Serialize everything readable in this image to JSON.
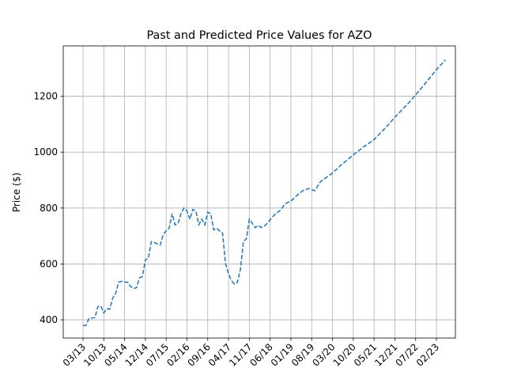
{
  "chart_data": {
    "type": "line",
    "title": "Past and Predicted Price Values for AZO",
    "xlabel": "",
    "ylabel": "Price ($)",
    "x_tick_labels": [
      "03/13",
      "10/13",
      "05/14",
      "12/14",
      "07/15",
      "02/16",
      "09/16",
      "04/17",
      "11/17",
      "06/18",
      "01/19",
      "08/19",
      "03/20",
      "10/20",
      "05/21",
      "12/21",
      "07/22",
      "02/23"
    ],
    "y_ticks": [
      400,
      600,
      800,
      1000,
      1200
    ],
    "ylim": [
      335,
      1380
    ],
    "grid": true,
    "line_style": "dashed",
    "series": [
      {
        "color": "#1f77b4",
        "points": [
          [
            "03/13",
            380
          ],
          [
            "04/13",
            380
          ],
          [
            "05/13",
            405
          ],
          [
            "07/13",
            408
          ],
          [
            "08/13",
            447
          ],
          [
            "09/13",
            450
          ],
          [
            "10/13",
            425
          ],
          [
            "11/13",
            440
          ],
          [
            "12/13",
            438
          ],
          [
            "01/14",
            478
          ],
          [
            "02/14",
            495
          ],
          [
            "03/14",
            535
          ],
          [
            "04/14",
            538
          ],
          [
            "05/14",
            535
          ],
          [
            "06/14",
            535
          ],
          [
            "07/14",
            520
          ],
          [
            "08/14",
            512
          ],
          [
            "09/14",
            515
          ],
          [
            "10/14",
            550
          ],
          [
            "11/14",
            555
          ],
          [
            "12/14",
            615
          ],
          [
            "01/15",
            620
          ],
          [
            "02/15",
            680
          ],
          [
            "03/15",
            677
          ],
          [
            "04/15",
            672
          ],
          [
            "05/15",
            668
          ],
          [
            "06/15",
            705
          ],
          [
            "07/15",
            718
          ],
          [
            "08/15",
            728
          ],
          [
            "09/15",
            780
          ],
          [
            "10/15",
            740
          ],
          [
            "11/15",
            745
          ],
          [
            "12/15",
            780
          ],
          [
            "01/16",
            800
          ],
          [
            "02/16",
            790
          ],
          [
            "03/16",
            760
          ],
          [
            "04/16",
            795
          ],
          [
            "05/16",
            790
          ],
          [
            "06/16",
            740
          ],
          [
            "07/16",
            760
          ],
          [
            "08/16",
            740
          ],
          [
            "09/16",
            785
          ],
          [
            "10/16",
            780
          ],
          [
            "11/16",
            722
          ],
          [
            "12/16",
            728
          ],
          [
            "01/17",
            718
          ],
          [
            "02/17",
            710
          ],
          [
            "03/17",
            600
          ],
          [
            "04/17",
            565
          ],
          [
            "05/17",
            540
          ],
          [
            "06/17",
            528
          ],
          [
            "07/17",
            535
          ],
          [
            "08/17",
            580
          ],
          [
            "09/17",
            680
          ],
          [
            "10/17",
            690
          ],
          [
            "11/17",
            760
          ],
          [
            "12/17",
            745
          ],
          [
            "01/18",
            730
          ],
          [
            "02/18",
            738
          ],
          [
            "03/18",
            730
          ],
          [
            "04/18",
            735
          ],
          [
            "05/18",
            745
          ],
          [
            "06/18",
            758
          ],
          [
            "07/18",
            770
          ],
          [
            "08/18",
            782
          ],
          [
            "09/18",
            788
          ],
          [
            "10/18",
            800
          ],
          [
            "11/18",
            815
          ],
          [
            "12/18",
            820
          ],
          [
            "01/19",
            825
          ],
          [
            "03/19",
            845
          ],
          [
            "05/19",
            862
          ],
          [
            "07/19",
            870
          ],
          [
            "09/19",
            862
          ],
          [
            "11/19",
            895
          ],
          [
            "01/20",
            910
          ],
          [
            "03/20",
            925
          ],
          [
            "06/20",
            955
          ],
          [
            "10/20",
            990
          ],
          [
            "01/21",
            1015
          ],
          [
            "05/21",
            1045
          ],
          [
            "10/21",
            1100
          ],
          [
            "12/21",
            1125
          ],
          [
            "05/22",
            1180
          ],
          [
            "09/22",
            1230
          ],
          [
            "02/23",
            1295
          ],
          [
            "05/23",
            1330
          ]
        ]
      }
    ]
  }
}
